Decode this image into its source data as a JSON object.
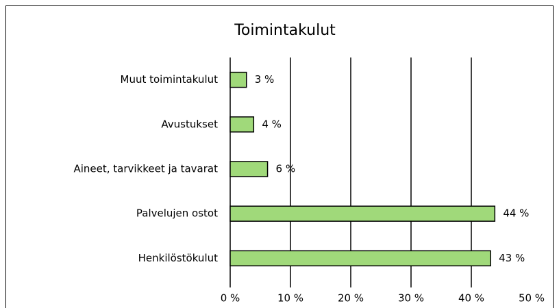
{
  "chart_data": {
    "type": "bar",
    "orientation": "horizontal",
    "title": "Toimintakulut",
    "categories": [
      "Muut toimintakulut",
      "Avustukset",
      "Aineet, tarvikkeet ja tavarat",
      "Palvelujen ostot",
      "Henkilöstökulut"
    ],
    "values": [
      2.7,
      3.9,
      6.2,
      43.9,
      43.2
    ],
    "value_labels": [
      "3 %",
      "4 %",
      "6 %",
      "44 %",
      "43 %"
    ],
    "color": "#a0d97a",
    "xlim": [
      0,
      50
    ],
    "xticks": [
      {
        "value": 0,
        "label": "0 %"
      },
      {
        "value": 10,
        "label": "10 %"
      },
      {
        "value": 20,
        "label": "20 %"
      },
      {
        "value": 30,
        "label": "30 %"
      },
      {
        "value": 40,
        "label": "40 %"
      },
      {
        "value": 50,
        "label": "50 %"
      }
    ],
    "grid": true
  }
}
